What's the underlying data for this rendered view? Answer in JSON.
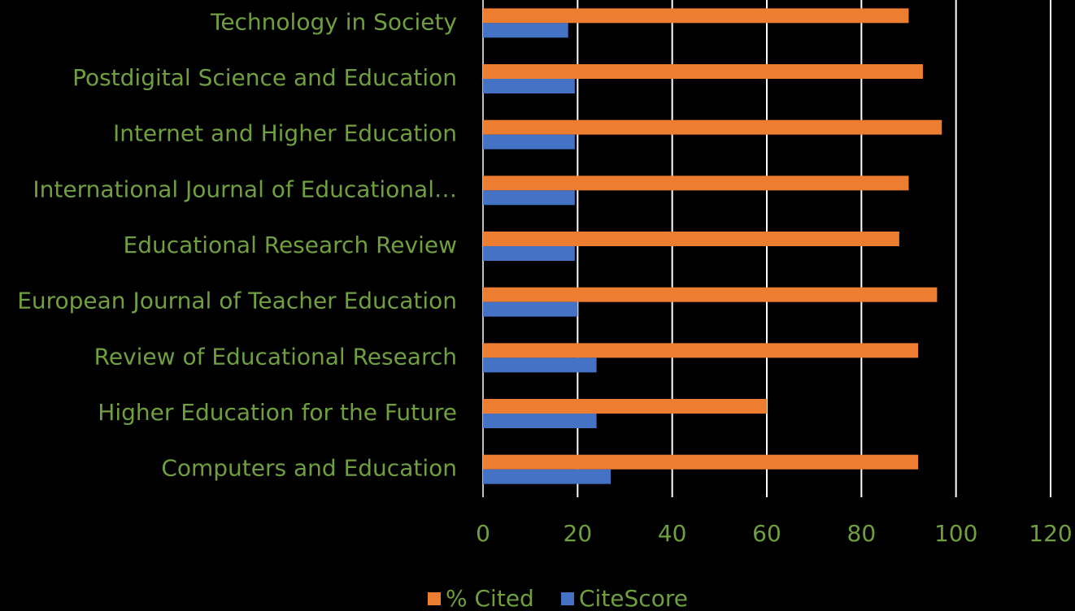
{
  "chart_data": {
    "type": "hbar",
    "categories": [
      "Technology in Society",
      "Postdigital Science and Education",
      "Internet and Higher Education",
      "International Journal of Educational…",
      "Educational Research Review",
      "European Journal of Teacher Education",
      "Review of Educational Research",
      "Higher Education for the Future",
      "Computers and Education"
    ],
    "series": [
      {
        "name": "% Cited",
        "color": "#ed7d31",
        "values": [
          90,
          93,
          97,
          90,
          88,
          96,
          92,
          60,
          92
        ]
      },
      {
        "name": "CiteScore",
        "color": "#4472c4",
        "values": [
          18,
          19.4,
          19.4,
          19.4,
          19.4,
          20,
          24,
          24,
          27
        ]
      }
    ],
    "xlim": [
      0,
      120
    ],
    "xticks": [
      0,
      20,
      40,
      60,
      80,
      100,
      120
    ],
    "grid": true,
    "legend": "bottom"
  }
}
